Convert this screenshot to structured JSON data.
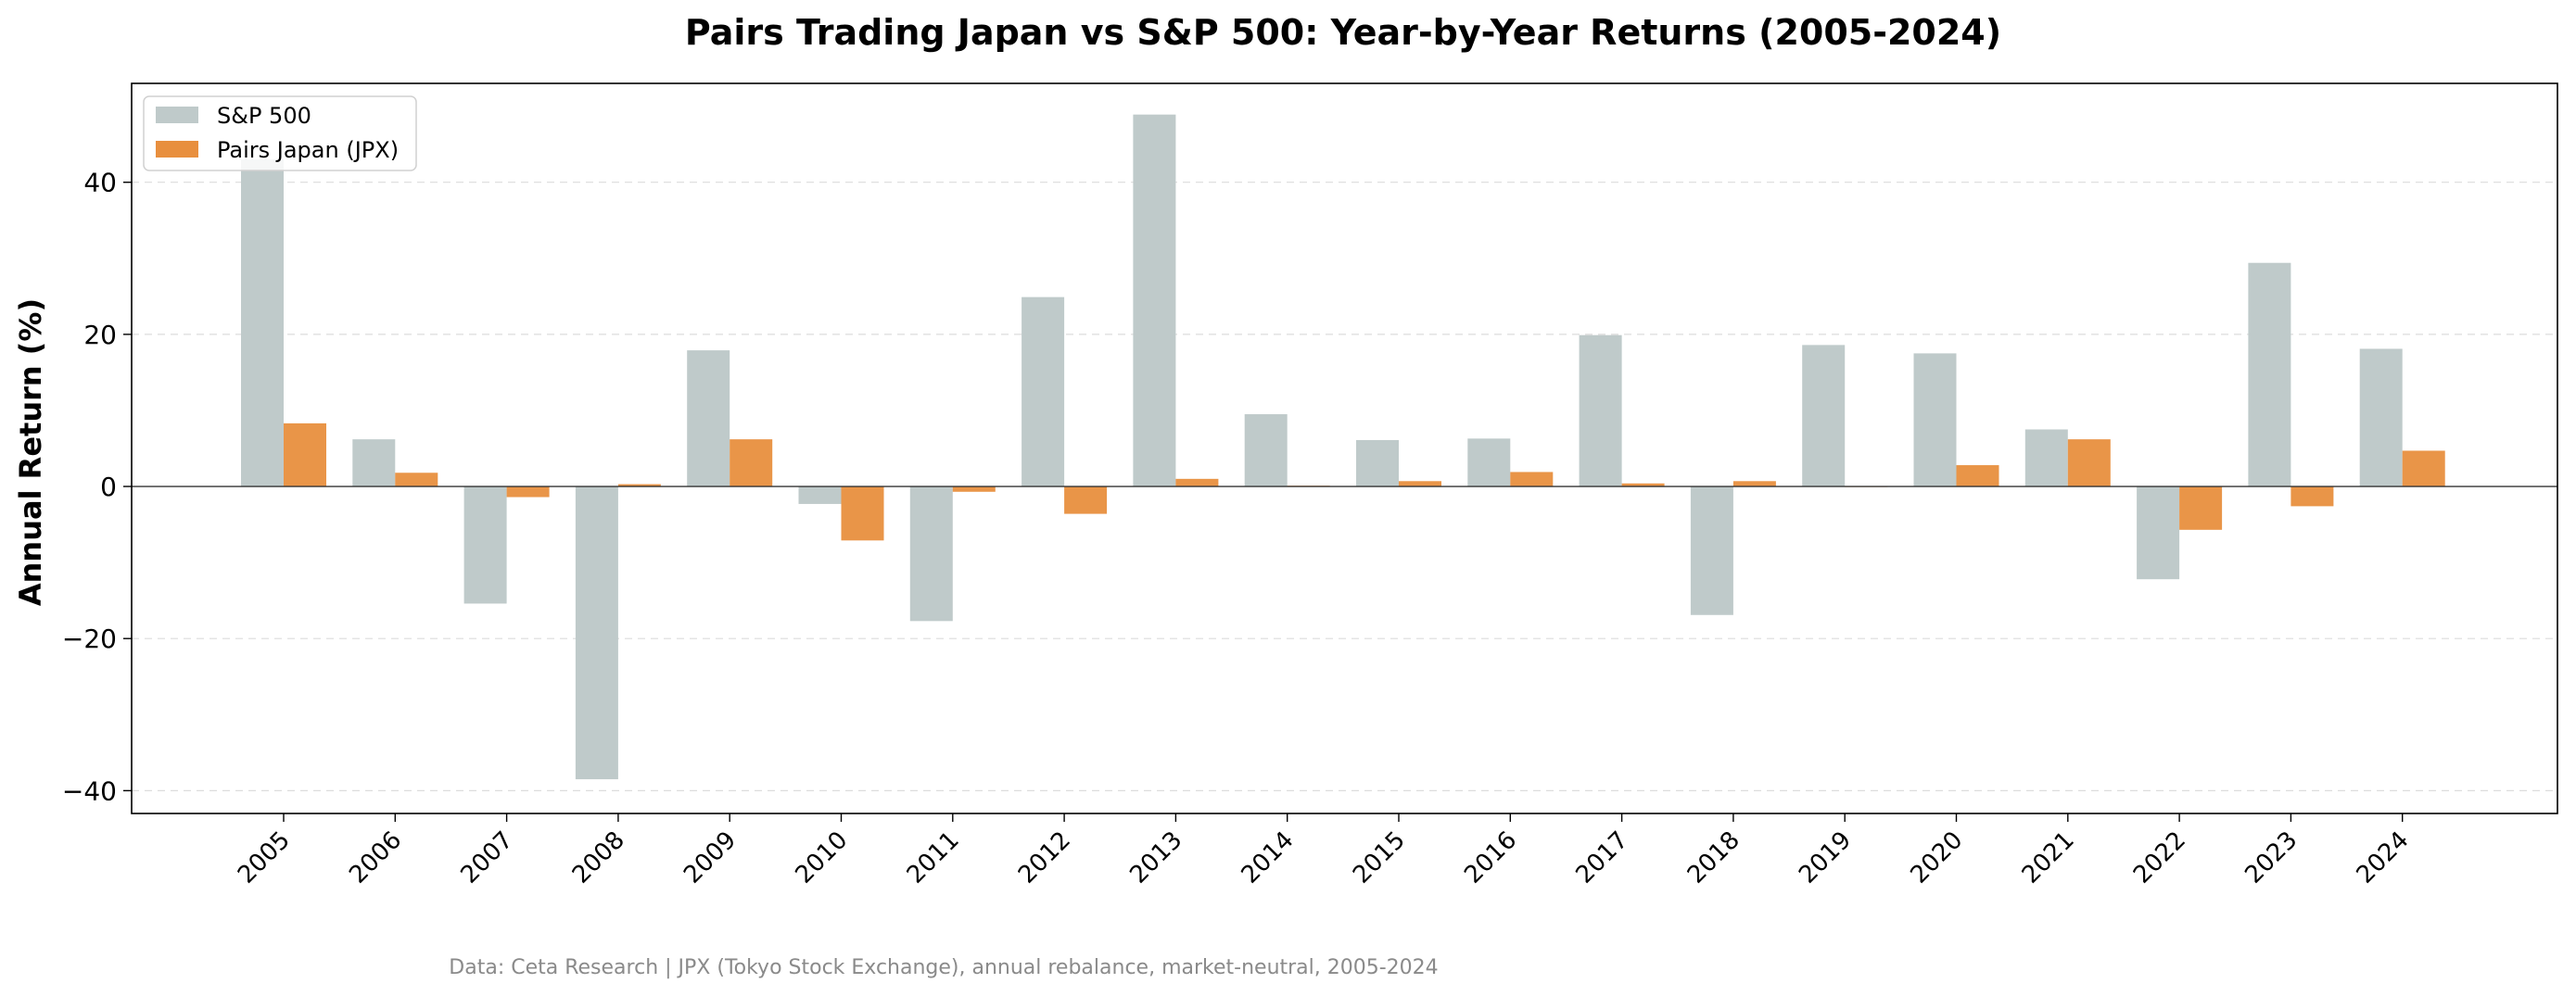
{
  "chart_data": {
    "type": "bar",
    "title": "Pairs Trading Japan vs S&P 500: Year-by-Year Returns (2005-2024)",
    "xlabel": "",
    "ylabel": "Annual Return (%)",
    "ylim": [
      -43,
      53
    ],
    "yticks": [
      40,
      20,
      0,
      -20,
      -40
    ],
    "ytick_labels": [
      "40",
      "20",
      "0",
      "−20",
      "−40"
    ],
    "grid": "y-dashed",
    "legend_position": "top-left",
    "categories": [
      "2005",
      "2006",
      "2007",
      "2008",
      "2009",
      "2010",
      "2011",
      "2012",
      "2013",
      "2014",
      "2015",
      "2016",
      "2017",
      "2018",
      "2019",
      "2020",
      "2021",
      "2022",
      "2023",
      "2024"
    ],
    "series": [
      {
        "name": "S&P 500",
        "color": "#bfcaca",
        "values": [
          43.0,
          6.2,
          -15.4,
          -38.5,
          17.9,
          -2.3,
          -17.7,
          24.9,
          48.9,
          9.5,
          6.1,
          6.3,
          19.9,
          -16.9,
          18.6,
          17.5,
          7.5,
          -12.2,
          29.4,
          18.1
        ]
      },
      {
        "name": "Pairs Japan (JPX)",
        "color": "#e88f3e",
        "values": [
          8.3,
          1.8,
          -1.4,
          0.3,
          6.2,
          -7.1,
          -0.7,
          -3.6,
          1.0,
          0.1,
          0.7,
          1.9,
          0.4,
          0.7,
          0.0,
          2.8,
          6.2,
          -5.7,
          -2.6,
          4.7
        ]
      }
    ],
    "footer": "Data: Ceta Research | JPX (Tokyo Stock Exchange), annual rebalance, market-neutral, 2005-2024"
  }
}
